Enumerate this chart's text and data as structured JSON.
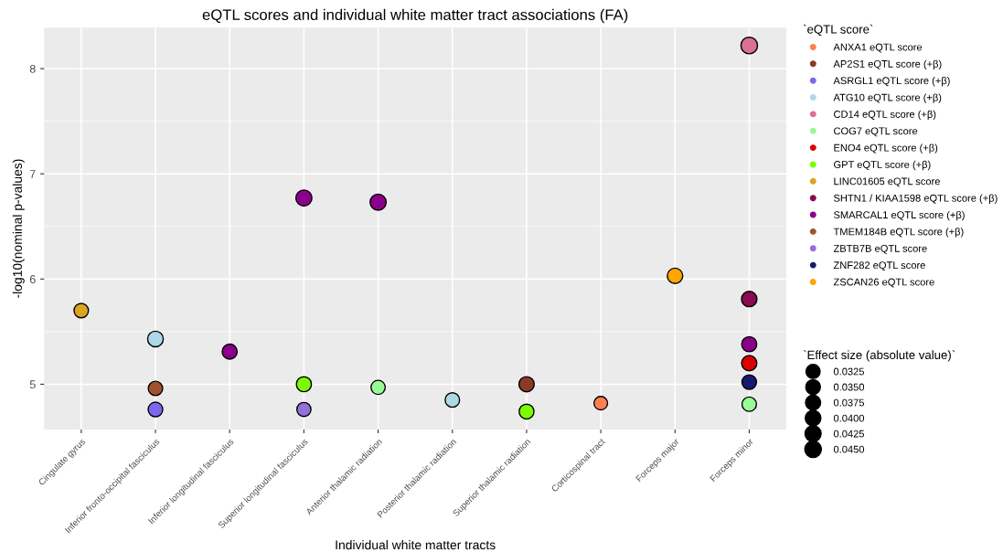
{
  "chart_data": {
    "type": "bubble",
    "title": "eQTL scores and individual white matter tract associations (FA)",
    "xlabel": "Individual white matter tracts",
    "ylabel": "-log10(nominal p-values)",
    "categories": [
      "Cingulate gyrus",
      "Inferior fronto-occipital fasciculus",
      "Inferior longitudinal fasciculus",
      "Superior longitudinal fasciculus",
      "Anterior thalamic radiation",
      "Posterior thalamic radiation",
      "Superior thalamic radiation",
      "Corticospinal tract",
      "Forceps major",
      "Forceps minor"
    ],
    "ylim": [
      4.57,
      8.39
    ],
    "yticks": [
      5,
      6,
      7,
      8
    ],
    "grid": true,
    "legend": "right",
    "legend_title": "`eQTL score`",
    "size_legend": [
      0.0325,
      {
        "value": 0.035,
        "label": "0.0350"
      },
      0.0375,
      {
        "value": 0.04,
        "label": "0.0400"
      },
      0.0425,
      {
        "value": 0.045,
        "label": "0.0450"
      }
    ],
    "annotations": [
      "`Effect size (absolute value)`"
    ],
    "series": [
      {
        "name": "ANXA1 eQTL score",
        "color": "#ff7f50",
        "values": [
          null,
          null,
          null,
          null,
          null,
          null,
          null,
          4.82,
          null,
          null
        ],
        "sizes": [
          null,
          null,
          null,
          null,
          null,
          null,
          null,
          0.03,
          null,
          null
        ]
      },
      {
        "name": "AP2S1 eQTL score (+β)",
        "color": "#8b3a2a",
        "values": [
          null,
          null,
          null,
          null,
          null,
          null,
          5.0,
          null,
          null,
          null
        ],
        "sizes": [
          null,
          null,
          null,
          null,
          null,
          null,
          0.038,
          null,
          null,
          null
        ]
      },
      {
        "name": "ASRGL1 eQTL score (+β)",
        "color": "#7b68ee",
        "values": [
          null,
          4.76,
          null,
          null,
          null,
          null,
          null,
          null,
          null,
          null
        ],
        "sizes": [
          null,
          0.035,
          null,
          null,
          null,
          null,
          null,
          null,
          null,
          null
        ]
      },
      {
        "name": "ATG10 eQTL score (+β)",
        "color": "#add8e6",
        "values": [
          null,
          5.43,
          null,
          null,
          null,
          4.85,
          null,
          null,
          null,
          null
        ],
        "sizes": [
          null,
          0.04,
          null,
          null,
          null,
          0.034,
          null,
          null,
          null,
          null
        ]
      },
      {
        "name": "CD14 eQTL score (+β)",
        "color": "#db7093",
        "values": [
          null,
          null,
          null,
          null,
          null,
          null,
          null,
          null,
          null,
          8.22
        ],
        "sizes": [
          null,
          null,
          null,
          null,
          null,
          null,
          null,
          null,
          null,
          0.045
        ]
      },
      {
        "name": "COG7 eQTL score",
        "color": "#98fb98",
        "values": [
          null,
          null,
          null,
          null,
          4.97,
          null,
          null,
          null,
          null,
          4.81
        ],
        "sizes": [
          null,
          null,
          null,
          null,
          0.033,
          null,
          null,
          null,
          null,
          0.034
        ]
      },
      {
        "name": "ENO4 eQTL score (+β)",
        "color": "#dd0000",
        "values": [
          null,
          null,
          null,
          null,
          null,
          null,
          null,
          null,
          null,
          5.2
        ],
        "sizes": [
          null,
          null,
          null,
          null,
          null,
          null,
          null,
          null,
          null,
          0.038
        ]
      },
      {
        "name": "GPT eQTL score (+β)",
        "color": "#7cfc00",
        "values": [
          null,
          null,
          null,
          5.0,
          null,
          null,
          4.74,
          null,
          null,
          null
        ],
        "sizes": [
          null,
          null,
          null,
          0.037,
          null,
          null,
          0.036,
          null,
          null,
          null
        ]
      },
      {
        "name": "LINC01605 eQTL score",
        "color": "#daa520",
        "values": [
          5.7,
          null,
          null,
          null,
          null,
          null,
          null,
          null,
          null,
          null
        ],
        "sizes": [
          0.034,
          null,
          null,
          null,
          null,
          null,
          null,
          null,
          null,
          null
        ]
      },
      {
        "name": "SHTN1 / KIAA1598 eQTL score (+β)",
        "color": "#8b0a50",
        "values": [
          null,
          null,
          null,
          null,
          null,
          null,
          null,
          null,
          null,
          5.81
        ],
        "sizes": [
          null,
          null,
          null,
          null,
          null,
          null,
          null,
          null,
          null,
          0.039
        ]
      },
      {
        "name": "SMARCAL1 eQTL score (+β)",
        "color": "#8b008b",
        "values": [
          null,
          null,
          5.31,
          6.77,
          6.73,
          null,
          null,
          null,
          null,
          5.38
        ],
        "sizes": [
          null,
          null,
          0.037,
          0.042,
          0.042,
          null,
          null,
          null,
          null,
          0.037
        ]
      },
      {
        "name": "TMEM184B eQTL score (+β)",
        "color": "#a0522d",
        "values": [
          null,
          4.96,
          null,
          null,
          null,
          null,
          null,
          null,
          null,
          null
        ],
        "sizes": [
          null,
          0.034,
          null,
          null,
          null,
          null,
          null,
          null,
          null,
          null
        ]
      },
      {
        "name": "ZBTB7B eQTL score",
        "color": "#9370db",
        "values": [
          null,
          null,
          null,
          4.76,
          null,
          null,
          null,
          null,
          null,
          null
        ],
        "sizes": [
          null,
          null,
          null,
          0.0325,
          null,
          null,
          null,
          null,
          null,
          null
        ]
      },
      {
        "name": "ZNF282 eQTL score",
        "color": "#191970",
        "values": [
          null,
          null,
          null,
          null,
          null,
          null,
          null,
          null,
          null,
          5.02
        ],
        "sizes": [
          null,
          null,
          null,
          null,
          null,
          null,
          null,
          null,
          null,
          0.035
        ]
      },
      {
        "name": "ZSCAN26 eQTL score",
        "color": "#ffa500",
        "values": [
          null,
          null,
          null,
          null,
          null,
          null,
          null,
          null,
          6.03,
          null
        ],
        "sizes": [
          null,
          null,
          null,
          null,
          null,
          null,
          null,
          null,
          0.039,
          null
        ]
      }
    ]
  }
}
